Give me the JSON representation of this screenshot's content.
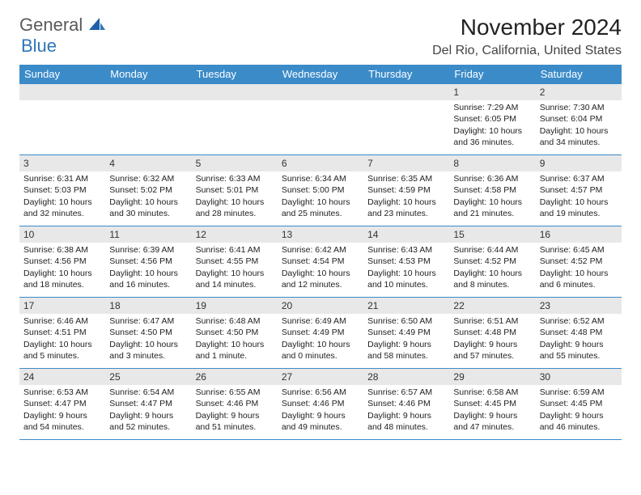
{
  "logo": {
    "word1": "General",
    "word2": "Blue"
  },
  "title": "November 2024",
  "location": "Del Rio, California, United States",
  "colors": {
    "header_bg": "#3b8bc9",
    "header_fg": "#ffffff",
    "day_bar_bg": "#e8e8e8",
    "rule": "#3b8bc9",
    "logo_accent": "#2e75b6",
    "logo_text": "#5a5a5a"
  },
  "weekdays": [
    "Sunday",
    "Monday",
    "Tuesday",
    "Wednesday",
    "Thursday",
    "Friday",
    "Saturday"
  ],
  "weeks": [
    [
      null,
      null,
      null,
      null,
      null,
      {
        "n": "1",
        "sr": "7:29 AM",
        "ss": "6:05 PM",
        "dl": "10 hours and 36 minutes."
      },
      {
        "n": "2",
        "sr": "7:30 AM",
        "ss": "6:04 PM",
        "dl": "10 hours and 34 minutes."
      }
    ],
    [
      {
        "n": "3",
        "sr": "6:31 AM",
        "ss": "5:03 PM",
        "dl": "10 hours and 32 minutes."
      },
      {
        "n": "4",
        "sr": "6:32 AM",
        "ss": "5:02 PM",
        "dl": "10 hours and 30 minutes."
      },
      {
        "n": "5",
        "sr": "6:33 AM",
        "ss": "5:01 PM",
        "dl": "10 hours and 28 minutes."
      },
      {
        "n": "6",
        "sr": "6:34 AM",
        "ss": "5:00 PM",
        "dl": "10 hours and 25 minutes."
      },
      {
        "n": "7",
        "sr": "6:35 AM",
        "ss": "4:59 PM",
        "dl": "10 hours and 23 minutes."
      },
      {
        "n": "8",
        "sr": "6:36 AM",
        "ss": "4:58 PM",
        "dl": "10 hours and 21 minutes."
      },
      {
        "n": "9",
        "sr": "6:37 AM",
        "ss": "4:57 PM",
        "dl": "10 hours and 19 minutes."
      }
    ],
    [
      {
        "n": "10",
        "sr": "6:38 AM",
        "ss": "4:56 PM",
        "dl": "10 hours and 18 minutes."
      },
      {
        "n": "11",
        "sr": "6:39 AM",
        "ss": "4:56 PM",
        "dl": "10 hours and 16 minutes."
      },
      {
        "n": "12",
        "sr": "6:41 AM",
        "ss": "4:55 PM",
        "dl": "10 hours and 14 minutes."
      },
      {
        "n": "13",
        "sr": "6:42 AM",
        "ss": "4:54 PM",
        "dl": "10 hours and 12 minutes."
      },
      {
        "n": "14",
        "sr": "6:43 AM",
        "ss": "4:53 PM",
        "dl": "10 hours and 10 minutes."
      },
      {
        "n": "15",
        "sr": "6:44 AM",
        "ss": "4:52 PM",
        "dl": "10 hours and 8 minutes."
      },
      {
        "n": "16",
        "sr": "6:45 AM",
        "ss": "4:52 PM",
        "dl": "10 hours and 6 minutes."
      }
    ],
    [
      {
        "n": "17",
        "sr": "6:46 AM",
        "ss": "4:51 PM",
        "dl": "10 hours and 5 minutes."
      },
      {
        "n": "18",
        "sr": "6:47 AM",
        "ss": "4:50 PM",
        "dl": "10 hours and 3 minutes."
      },
      {
        "n": "19",
        "sr": "6:48 AM",
        "ss": "4:50 PM",
        "dl": "10 hours and 1 minute."
      },
      {
        "n": "20",
        "sr": "6:49 AM",
        "ss": "4:49 PM",
        "dl": "10 hours and 0 minutes."
      },
      {
        "n": "21",
        "sr": "6:50 AM",
        "ss": "4:49 PM",
        "dl": "9 hours and 58 minutes."
      },
      {
        "n": "22",
        "sr": "6:51 AM",
        "ss": "4:48 PM",
        "dl": "9 hours and 57 minutes."
      },
      {
        "n": "23",
        "sr": "6:52 AM",
        "ss": "4:48 PM",
        "dl": "9 hours and 55 minutes."
      }
    ],
    [
      {
        "n": "24",
        "sr": "6:53 AM",
        "ss": "4:47 PM",
        "dl": "9 hours and 54 minutes."
      },
      {
        "n": "25",
        "sr": "6:54 AM",
        "ss": "4:47 PM",
        "dl": "9 hours and 52 minutes."
      },
      {
        "n": "26",
        "sr": "6:55 AM",
        "ss": "4:46 PM",
        "dl": "9 hours and 51 minutes."
      },
      {
        "n": "27",
        "sr": "6:56 AM",
        "ss": "4:46 PM",
        "dl": "9 hours and 49 minutes."
      },
      {
        "n": "28",
        "sr": "6:57 AM",
        "ss": "4:46 PM",
        "dl": "9 hours and 48 minutes."
      },
      {
        "n": "29",
        "sr": "6:58 AM",
        "ss": "4:45 PM",
        "dl": "9 hours and 47 minutes."
      },
      {
        "n": "30",
        "sr": "6:59 AM",
        "ss": "4:45 PM",
        "dl": "9 hours and 46 minutes."
      }
    ]
  ],
  "labels": {
    "sunrise": "Sunrise: ",
    "sunset": "Sunset: ",
    "daylight": "Daylight: "
  }
}
